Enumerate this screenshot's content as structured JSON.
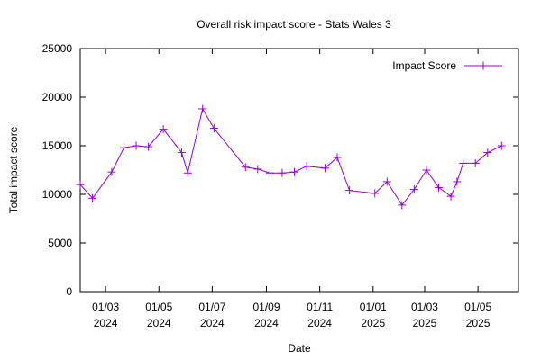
{
  "chart_data": {
    "type": "line",
    "title": "Overall risk impact score - Stats Wales 3",
    "xlabel": "Date",
    "ylabel": "Total impact score",
    "xlim": [
      "2024-02-01",
      "2025-06-30"
    ],
    "ylim": [
      0,
      25000
    ],
    "y_ticks": [
      0,
      5000,
      10000,
      15000,
      20000,
      25000
    ],
    "x_ticks": [
      {
        "date": "2024-03-01",
        "label_line1": "01/03",
        "label_line2": "2024"
      },
      {
        "date": "2024-05-01",
        "label_line1": "01/05",
        "label_line2": "2024"
      },
      {
        "date": "2024-07-01",
        "label_line1": "01/07",
        "label_line2": "2024"
      },
      {
        "date": "2024-09-01",
        "label_line1": "01/09",
        "label_line2": "2024"
      },
      {
        "date": "2024-11-01",
        "label_line1": "01/11",
        "label_line2": "2024"
      },
      {
        "date": "2025-01-01",
        "label_line1": "01/01",
        "label_line2": "2025"
      },
      {
        "date": "2025-03-01",
        "label_line1": "01/03",
        "label_line2": "2025"
      },
      {
        "date": "2025-05-01",
        "label_line1": "01/05",
        "label_line2": "2025"
      }
    ],
    "grid": false,
    "legend_position": "top-right",
    "series": [
      {
        "name": "Impact Score",
        "color": "#9400d3",
        "marker": "plus",
        "x": [
          "2024-02-01",
          "2024-02-15",
          "2024-03-08",
          "2024-03-22",
          "2024-04-05",
          "2024-04-19",
          "2024-05-06",
          "2024-05-27",
          "2024-06-03",
          "2024-06-20",
          "2024-07-03",
          "2024-08-08",
          "2024-08-22",
          "2024-09-05",
          "2024-09-19",
          "2024-10-03",
          "2024-10-17",
          "2024-11-07",
          "2024-11-21",
          "2024-12-05",
          "2025-01-03",
          "2025-01-17",
          "2025-02-03",
          "2025-02-17",
          "2025-03-03",
          "2025-03-17",
          "2025-03-31",
          "2025-04-07",
          "2025-04-14",
          "2025-04-28",
          "2025-05-12",
          "2025-05-28"
        ],
        "values": [
          11000,
          9600,
          12300,
          14800,
          15000,
          14900,
          16700,
          14300,
          12200,
          18800,
          16800,
          12800,
          12600,
          12200,
          12200,
          12300,
          12900,
          12700,
          13800,
          10400,
          10100,
          11300,
          8900,
          10500,
          12500,
          10700,
          9800,
          11300,
          13200,
          13200,
          14300,
          15000
        ]
      }
    ]
  }
}
